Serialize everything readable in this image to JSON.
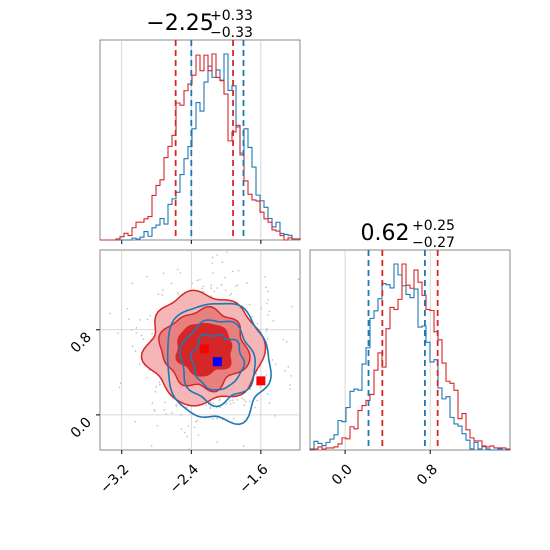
{
  "chart_data": {
    "type": "corner",
    "parameters": [
      {
        "title": {
          "median": "−2.25",
          "plus": "+0.33",
          "minus": "−0.33"
        },
        "range": [
          -3.45,
          -1.15
        ],
        "ticks": [
          -3.2,
          -2.4,
          -1.6
        ],
        "tick_labels": [
          "−3.2",
          "−2.4",
          "−1.6"
        ],
        "quantiles": {
          "red": [
            -2.58,
            -1.92
          ],
          "blue": [
            -2.4,
            -1.8
          ]
        }
      },
      {
        "title": {
          "median": "0.62",
          "plus": "+0.25",
          "minus": "−0.27"
        },
        "range": [
          -0.33,
          1.55
        ],
        "ticks": [
          0.0,
          0.8
        ],
        "tick_labels": [
          "0.0",
          "0.8"
        ],
        "quantiles": {
          "red": [
            0.35,
            0.87
          ],
          "blue": [
            0.22,
            0.75
          ]
        }
      }
    ],
    "series": [
      {
        "color": "#d62728",
        "center": [
          -2.25,
          0.62
        ],
        "sigma": [
          0.33,
          0.26
        ]
      },
      {
        "color": "#1f77b4",
        "center": [
          -2.1,
          0.5
        ],
        "sigma": [
          0.3,
          0.28
        ]
      }
    ],
    "markers": [
      {
        "color": "#ff0000",
        "x": -2.25,
        "y": 0.62
      },
      {
        "color": "#0000ff",
        "x": -2.1,
        "y": 0.5
      },
      {
        "color": "#ff0000",
        "x": -1.6,
        "y": 0.32
      }
    ],
    "scatter_range_y": [
      -0.33,
      1.55
    ],
    "grid": true
  }
}
